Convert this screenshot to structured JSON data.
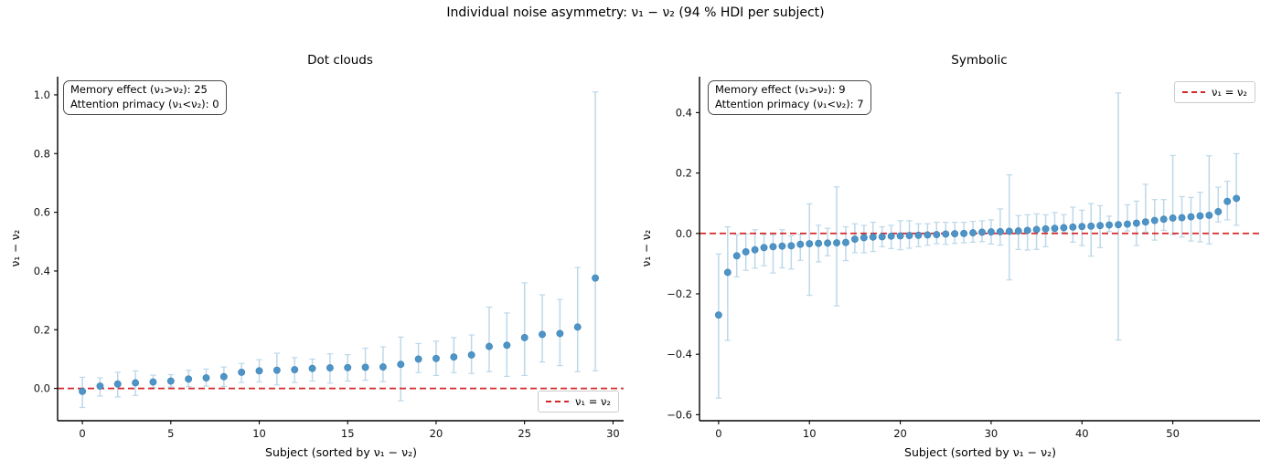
{
  "figure": {
    "title": "Individual noise asymmetry: ν₁ − ν₂ (94 % HDI per subject)"
  },
  "colors": {
    "dot": "#4e94c6",
    "dot_edge": "#3d85b8",
    "errorbar": "#bdd8e9",
    "zero_line": "#d62728",
    "spine": "#000000",
    "text": "#111111"
  },
  "chart_data": [
    {
      "type": "scatter",
      "title": "Dot clouds",
      "xlabel": "Subject (sorted by ν₁ − ν₂)",
      "ylabel": "ν₁ − ν₂",
      "hdi_label": "94 % HDI",
      "annotation": [
        "Memory effect (ν₁>ν₂): 25",
        "Attention primacy (ν₁<ν₂): 0"
      ],
      "legend": {
        "label": "ν₁ = ν₂",
        "position": "lower-right"
      },
      "zero_line_y": 0,
      "xlim": [
        -1.4,
        30.6
      ],
      "ylim": [
        -0.11,
        1.062
      ],
      "xticks": [
        0,
        5,
        10,
        15,
        20,
        25,
        30
      ],
      "xticklabels": [
        "0",
        "5",
        "10",
        "15",
        "20",
        "25",
        "30"
      ],
      "yticks": [
        0,
        0.2,
        0.4,
        0.6,
        0.8,
        1.0
      ],
      "yticklabels": [
        "0.0",
        "0.2",
        "0.4",
        "0.6",
        "0.8",
        "1.0"
      ],
      "subjects": [
        0,
        1,
        2,
        3,
        4,
        5,
        6,
        7,
        8,
        9,
        10,
        11,
        12,
        13,
        14,
        15,
        16,
        17,
        18,
        19,
        20,
        21,
        22,
        23,
        24,
        25,
        26,
        27,
        28,
        29
      ],
      "mean": [
        -0.01,
        0.008,
        0.015,
        0.019,
        0.022,
        0.025,
        0.032,
        0.036,
        0.04,
        0.055,
        0.06,
        0.062,
        0.064,
        0.068,
        0.07,
        0.071,
        0.072,
        0.073,
        0.082,
        0.1,
        0.102,
        0.107,
        0.114,
        0.143,
        0.147,
        0.173,
        0.184,
        0.187,
        0.209,
        0.376
      ],
      "hdi_low": [
        -0.065,
        -0.026,
        -0.029,
        -0.024,
        0.003,
        0.005,
        0.006,
        0.008,
        0.007,
        0.02,
        0.022,
        0.012,
        0.02,
        0.025,
        0.018,
        0.025,
        0.028,
        0.023,
        -0.042,
        0.054,
        0.044,
        0.054,
        0.051,
        0.057,
        0.041,
        0.044,
        0.09,
        0.078,
        0.057,
        0.06
      ],
      "hdi_high": [
        0.038,
        0.036,
        0.055,
        0.06,
        0.045,
        0.047,
        0.062,
        0.066,
        0.073,
        0.085,
        0.098,
        0.12,
        0.105,
        0.1,
        0.118,
        0.115,
        0.137,
        0.142,
        0.175,
        0.153,
        0.161,
        0.173,
        0.182,
        0.277,
        0.257,
        0.36,
        0.319,
        0.303,
        0.412,
        1.01
      ]
    },
    {
      "type": "scatter",
      "title": "Symbolic",
      "xlabel": "Subject (sorted by ν₁ − ν₂)",
      "ylabel": "ν₁ − ν₂",
      "hdi_label": "94 % HDI",
      "annotation": [
        "Memory effect (ν₁>ν₂): 9",
        "Attention primacy (ν₁<ν₂): 7"
      ],
      "legend": {
        "label": "ν₁ = ν₂",
        "position": "upper-right"
      },
      "zero_line_y": 0,
      "xlim": [
        -2.1,
        59.6
      ],
      "ylim": [
        -0.62,
        0.519
      ],
      "xticks": [
        0,
        10,
        20,
        30,
        40,
        50
      ],
      "xticklabels": [
        "0",
        "10",
        "20",
        "30",
        "40",
        "50"
      ],
      "yticks": [
        0.4,
        0.2,
        0,
        -0.2,
        -0.4,
        -0.6
      ],
      "yticklabels": [
        "0.4",
        "0.2",
        "0.0",
        "−0.2",
        "−0.4",
        "−0.6"
      ],
      "subjects": [
        0,
        1,
        2,
        3,
        4,
        5,
        6,
        7,
        8,
        9,
        10,
        11,
        12,
        13,
        14,
        15,
        16,
        17,
        18,
        19,
        20,
        21,
        22,
        23,
        24,
        25,
        26,
        27,
        28,
        29,
        30,
        31,
        32,
        33,
        34,
        35,
        36,
        37,
        38,
        39,
        40,
        41,
        42,
        43,
        44,
        45,
        46,
        47,
        48,
        49,
        50,
        51,
        52,
        53,
        54,
        55,
        56,
        57
      ],
      "mean": [
        -0.27,
        -0.129,
        -0.074,
        -0.061,
        -0.054,
        -0.047,
        -0.044,
        -0.042,
        -0.041,
        -0.036,
        -0.034,
        -0.033,
        -0.032,
        -0.031,
        -0.03,
        -0.019,
        -0.014,
        -0.012,
        -0.011,
        -0.009,
        -0.008,
        -0.007,
        -0.006,
        -0.005,
        -0.004,
        -0.002,
        -0.001,
        0.0,
        0.002,
        0.004,
        0.005,
        0.006,
        0.007,
        0.008,
        0.01,
        0.013,
        0.015,
        0.017,
        0.019,
        0.021,
        0.023,
        0.024,
        0.026,
        0.028,
        0.029,
        0.031,
        0.034,
        0.038,
        0.043,
        0.047,
        0.051,
        0.052,
        0.055,
        0.058,
        0.06,
        0.072,
        0.106,
        0.116
      ],
      "hdi_low": [
        -0.545,
        -0.354,
        -0.144,
        -0.122,
        -0.115,
        -0.107,
        -0.131,
        -0.114,
        -0.118,
        -0.089,
        -0.205,
        -0.094,
        -0.074,
        -0.24,
        -0.09,
        -0.064,
        -0.064,
        -0.06,
        -0.044,
        -0.05,
        -0.054,
        -0.049,
        -0.044,
        -0.039,
        -0.034,
        -0.036,
        -0.033,
        -0.031,
        -0.029,
        -0.027,
        -0.035,
        -0.039,
        -0.154,
        -0.053,
        -0.055,
        -0.053,
        -0.044,
        0.004,
        0.004,
        -0.029,
        -0.04,
        -0.075,
        -0.047,
        0.006,
        -0.353,
        0.008,
        -0.04,
        0.004,
        -0.022,
        0.01,
        -0.004,
        -0.012,
        -0.025,
        -0.028,
        -0.035,
        0.038,
        0.045,
        0.027
      ],
      "hdi_high": [
        -0.068,
        0.022,
        -0.004,
        -0.002,
        0.012,
        -0.003,
        -0.005,
        0.012,
        -0.008,
        -0.003,
        0.098,
        0.027,
        0.017,
        0.154,
        0.022,
        0.032,
        0.027,
        0.037,
        0.022,
        0.027,
        0.042,
        0.042,
        0.032,
        0.032,
        0.037,
        0.037,
        0.037,
        0.037,
        0.04,
        0.042,
        0.045,
        0.081,
        0.194,
        0.059,
        0.062,
        0.065,
        0.062,
        0.069,
        0.062,
        0.087,
        0.077,
        0.099,
        0.092,
        0.057,
        0.465,
        0.095,
        0.107,
        0.163,
        0.112,
        0.112,
        0.258,
        0.122,
        0.119,
        0.136,
        0.257,
        0.153,
        0.173,
        0.264
      ]
    }
  ]
}
